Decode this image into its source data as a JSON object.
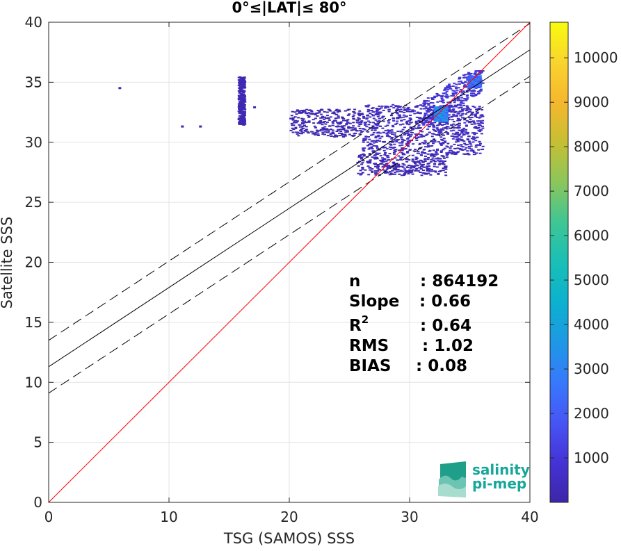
{
  "chart_data": {
    "type": "heatmap",
    "title": "0°≤|LAT|≤ 80°",
    "xlabel": "TSG (SAMOS) SSS",
    "ylabel": "Satellite SSS",
    "xlim": [
      0,
      40
    ],
    "ylim": [
      0,
      40
    ],
    "xticks": [
      "0",
      "10",
      "20",
      "30",
      "40"
    ],
    "yticks": [
      "0",
      "5",
      "10",
      "15",
      "20",
      "25",
      "30",
      "35",
      "40"
    ],
    "grid": true,
    "identity_line": {
      "slope": 1,
      "intercept": 0,
      "color": "#ff0000"
    },
    "fit_line": {
      "slope": 0.66,
      "intercept": 11.3,
      "color": "#000000"
    },
    "fit_bounds": [
      {
        "slope": 0.66,
        "intercept": 13.5
      },
      {
        "slope": 0.66,
        "intercept": 9.1
      }
    ],
    "stats": {
      "n_label": "n",
      "n_value": ": 864192",
      "slope_label": "Slope",
      "slope_value": ": 0.66",
      "r2_label": "R",
      "r2_sup": "2",
      "r2_value": ": 0.64",
      "rms_label": "RMS",
      "rms_value": ": 1.02",
      "bias_label": "BIAS",
      "bias_value": ": 0.08"
    },
    "colorbar": {
      "min": 0,
      "max": 10800,
      "ticks": [
        "1000",
        "2000",
        "3000",
        "4000",
        "5000",
        "6000",
        "7000",
        "8000",
        "9000",
        "10000"
      ],
      "colors": [
        "#3e26a8",
        "#4433d6",
        "#4755f5",
        "#3779fc",
        "#1e98e5",
        "#0cb1cf",
        "#19bfb6",
        "#3fc694",
        "#8bc65c",
        "#c6bf33",
        "#f5b72d",
        "#f9d42e",
        "#f9fb0e"
      ]
    },
    "density_clusters": [
      {
        "x": [
          26,
          36
        ],
        "y": [
          29,
          33.2
        ],
        "level": 0.04
      },
      {
        "x": [
          20,
          26
        ],
        "y": [
          30.5,
          32.8
        ],
        "level": 0.015
      },
      {
        "x": [
          31,
          36
        ],
        "y": [
          31.5,
          36
        ],
        "level": 0.08
      },
      {
        "x": [
          32,
          33
        ],
        "y": [
          31.8,
          33
        ],
        "level": 0.28
      },
      {
        "x": [
          34.8,
          35.8
        ],
        "y": [
          34.6,
          35.6
        ],
        "level": 0.22
      },
      {
        "x": [
          25.5,
          33
        ],
        "y": [
          27.3,
          29
        ],
        "level": 0.02
      },
      {
        "x": [
          15.7,
          16.2
        ],
        "y": [
          31.5,
          35.5
        ],
        "level": 0.02
      }
    ]
  },
  "logo": {
    "line1": "salinity",
    "line2": "pi-mep"
  }
}
